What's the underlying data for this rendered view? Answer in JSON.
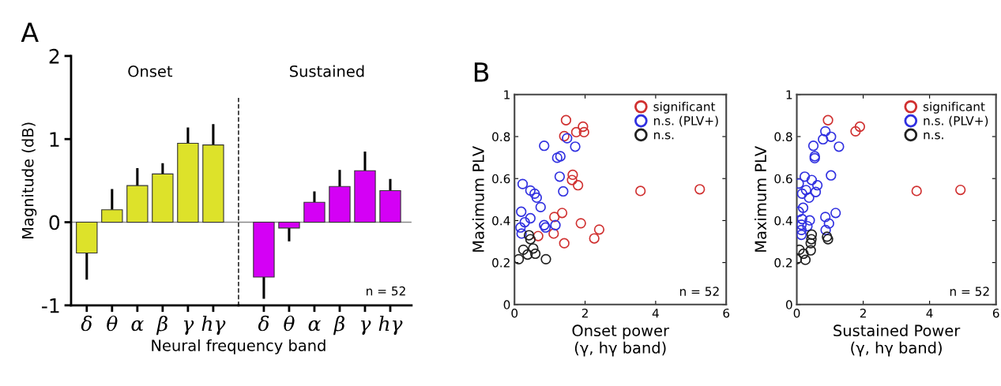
{
  "chart_data": [
    {
      "type": "bar",
      "title": "A",
      "subtitle": "Onset",
      "ylabel": "Magnitude (dB)",
      "xlabel": "Neural frequency band",
      "categories": [
        "δ",
        "θ",
        "α",
        "β",
        "γ",
        "hγ"
      ],
      "color": "#dde22a",
      "values": [
        -0.37,
        0.15,
        0.44,
        0.58,
        0.95,
        0.93
      ],
      "errors": [
        [
          -0.69,
          -0.37
        ],
        [
          0.15,
          0.4
        ],
        [
          0.44,
          0.65
        ],
        [
          0.58,
          0.71
        ],
        [
          0.95,
          1.14
        ],
        [
          0.93,
          1.18
        ]
      ],
      "ylim": [
        -1,
        2
      ],
      "yticks": [
        -1,
        0,
        1,
        2
      ],
      "grid": false,
      "ref_lines": [
        {
          "axis": "y",
          "value": 0,
          "color": "#888888",
          "line_style": "solid"
        }
      ]
    },
    {
      "type": "bar",
      "subtitle": "Sustained",
      "tick_labels": "x",
      "categories": [
        "δ",
        "θ",
        "α",
        "β",
        "γ",
        "hγ"
      ],
      "color": "#d400f5",
      "values": [
        -0.66,
        -0.07,
        0.24,
        0.43,
        0.62,
        0.38
      ],
      "errors": [
        [
          -0.92,
          -0.66
        ],
        [
          -0.23,
          -0.07
        ],
        [
          0.24,
          0.37
        ],
        [
          0.43,
          0.63
        ],
        [
          0.62,
          0.85
        ],
        [
          0.38,
          0.52
        ]
      ],
      "ylim": [
        -1,
        2
      ],
      "grid": false,
      "ref_lines": [
        {
          "axis": "y",
          "value": 0,
          "color": "#888888",
          "line_style": "solid"
        }
      ],
      "annotations": [
        "n = 52"
      ]
    },
    {
      "type": "scatter",
      "title": "B",
      "xlabel": "Onset power\n(γ, hγ band)",
      "ylabel": "Maximum PLV",
      "xlim": [
        0,
        6
      ],
      "xticks": [
        0,
        2,
        4,
        6
      ],
      "ylim": [
        0,
        1
      ],
      "yticks": [
        0,
        0.2,
        0.4,
        0.6,
        0.8,
        1
      ],
      "grid": false,
      "legend": "top right",
      "marker": "circle",
      "series": [
        {
          "name": "significant",
          "color": "#d03030",
          "x": [
            1.46,
            1.94,
            1.97,
            1.75,
            1.41,
            1.65,
            1.63,
            1.8,
            3.57,
            5.25,
            1.35,
            1.13,
            1.88,
            2.4,
            2.26,
            1.11,
            1.41,
            0.67
          ],
          "values": [
            0.878,
            0.847,
            0.821,
            0.821,
            0.802,
            0.618,
            0.593,
            0.568,
            0.541,
            0.549,
            0.436,
            0.417,
            0.387,
            0.357,
            0.315,
            0.338,
            0.292,
            0.326
          ]
        },
        {
          "name": "n.s. (PLV+)",
          "color": "#3030e0",
          "x": [
            0.84,
            1.49,
            1.72,
            1.3,
            1.21,
            1.28,
            1.38,
            0.23,
            0.45,
            0.57,
            0.63,
            0.74,
            0.19,
            0.45,
            0.29,
            0.17,
            0.2,
            0.84,
            0.88,
            1.16
          ],
          "values": [
            0.756,
            0.792,
            0.752,
            0.706,
            0.699,
            0.609,
            0.539,
            0.574,
            0.543,
            0.528,
            0.509,
            0.464,
            0.442,
            0.411,
            0.392,
            0.367,
            0.338,
            0.378,
            0.367,
            0.378
          ]
        },
        {
          "name": "n.s.",
          "color": "#202020",
          "x": [
            0.41,
            0.45,
            0.25,
            0.37,
            0.53,
            0.59,
            0.12,
            0.89
          ],
          "values": [
            0.33,
            0.311,
            0.261,
            0.238,
            0.267,
            0.242,
            0.216,
            0.216
          ]
        }
      ],
      "annotations": [
        "n = 52"
      ]
    },
    {
      "type": "scatter",
      "xlabel": "Sustained Power\n(γ, hγ band)",
      "ylabel": "Maximum PLV",
      "xlim": [
        0,
        6
      ],
      "xticks": [
        0,
        2,
        4,
        6
      ],
      "ylim": [
        0,
        1
      ],
      "yticks": [
        0,
        0.2,
        0.4,
        0.6,
        0.8,
        1
      ],
      "grid": false,
      "legend": "top right",
      "marker": "circle",
      "series": [
        {
          "name": "significant",
          "color": "#d03030",
          "x": [
            0.94,
            1.9,
            1.77,
            3.61,
            4.93
          ],
          "values": [
            0.878,
            0.847,
            0.825,
            0.541,
            0.546
          ]
        },
        {
          "name": "n.s. (PLV+)",
          "color": "#3030e0",
          "x": [
            0.86,
            1.03,
            0.79,
            0.5,
            1.27,
            0.54,
            0.54,
            1.03,
            0.24,
            0.45,
            0.06,
            0.62,
            0.28,
            0.57,
            0.16,
            0.37,
            0.19,
            0.06,
            1.17,
            0.16,
            0.39,
            0.86,
            0.97,
            0.14,
            0.32,
            0.14,
            0.87,
            0.14
          ],
          "values": [
            0.825,
            0.799,
            0.787,
            0.756,
            0.752,
            0.706,
            0.697,
            0.615,
            0.609,
            0.593,
            0.576,
            0.568,
            0.545,
            0.536,
            0.528,
            0.509,
            0.461,
            0.442,
            0.436,
            0.407,
            0.401,
            0.417,
            0.386,
            0.38,
            0.373,
            0.355,
            0.355,
            0.332
          ]
        },
        {
          "name": "n.s.",
          "color": "#202020",
          "x": [
            0.45,
            0.44,
            0.42,
            0.91,
            0.94,
            0.08,
            0.42,
            0.2,
            0.0,
            0.26
          ],
          "values": [
            0.333,
            0.311,
            0.292,
            0.323,
            0.311,
            0.261,
            0.258,
            0.242,
            0.216,
            0.213
          ]
        }
      ],
      "annotations": [
        "n = 52"
      ]
    }
  ]
}
